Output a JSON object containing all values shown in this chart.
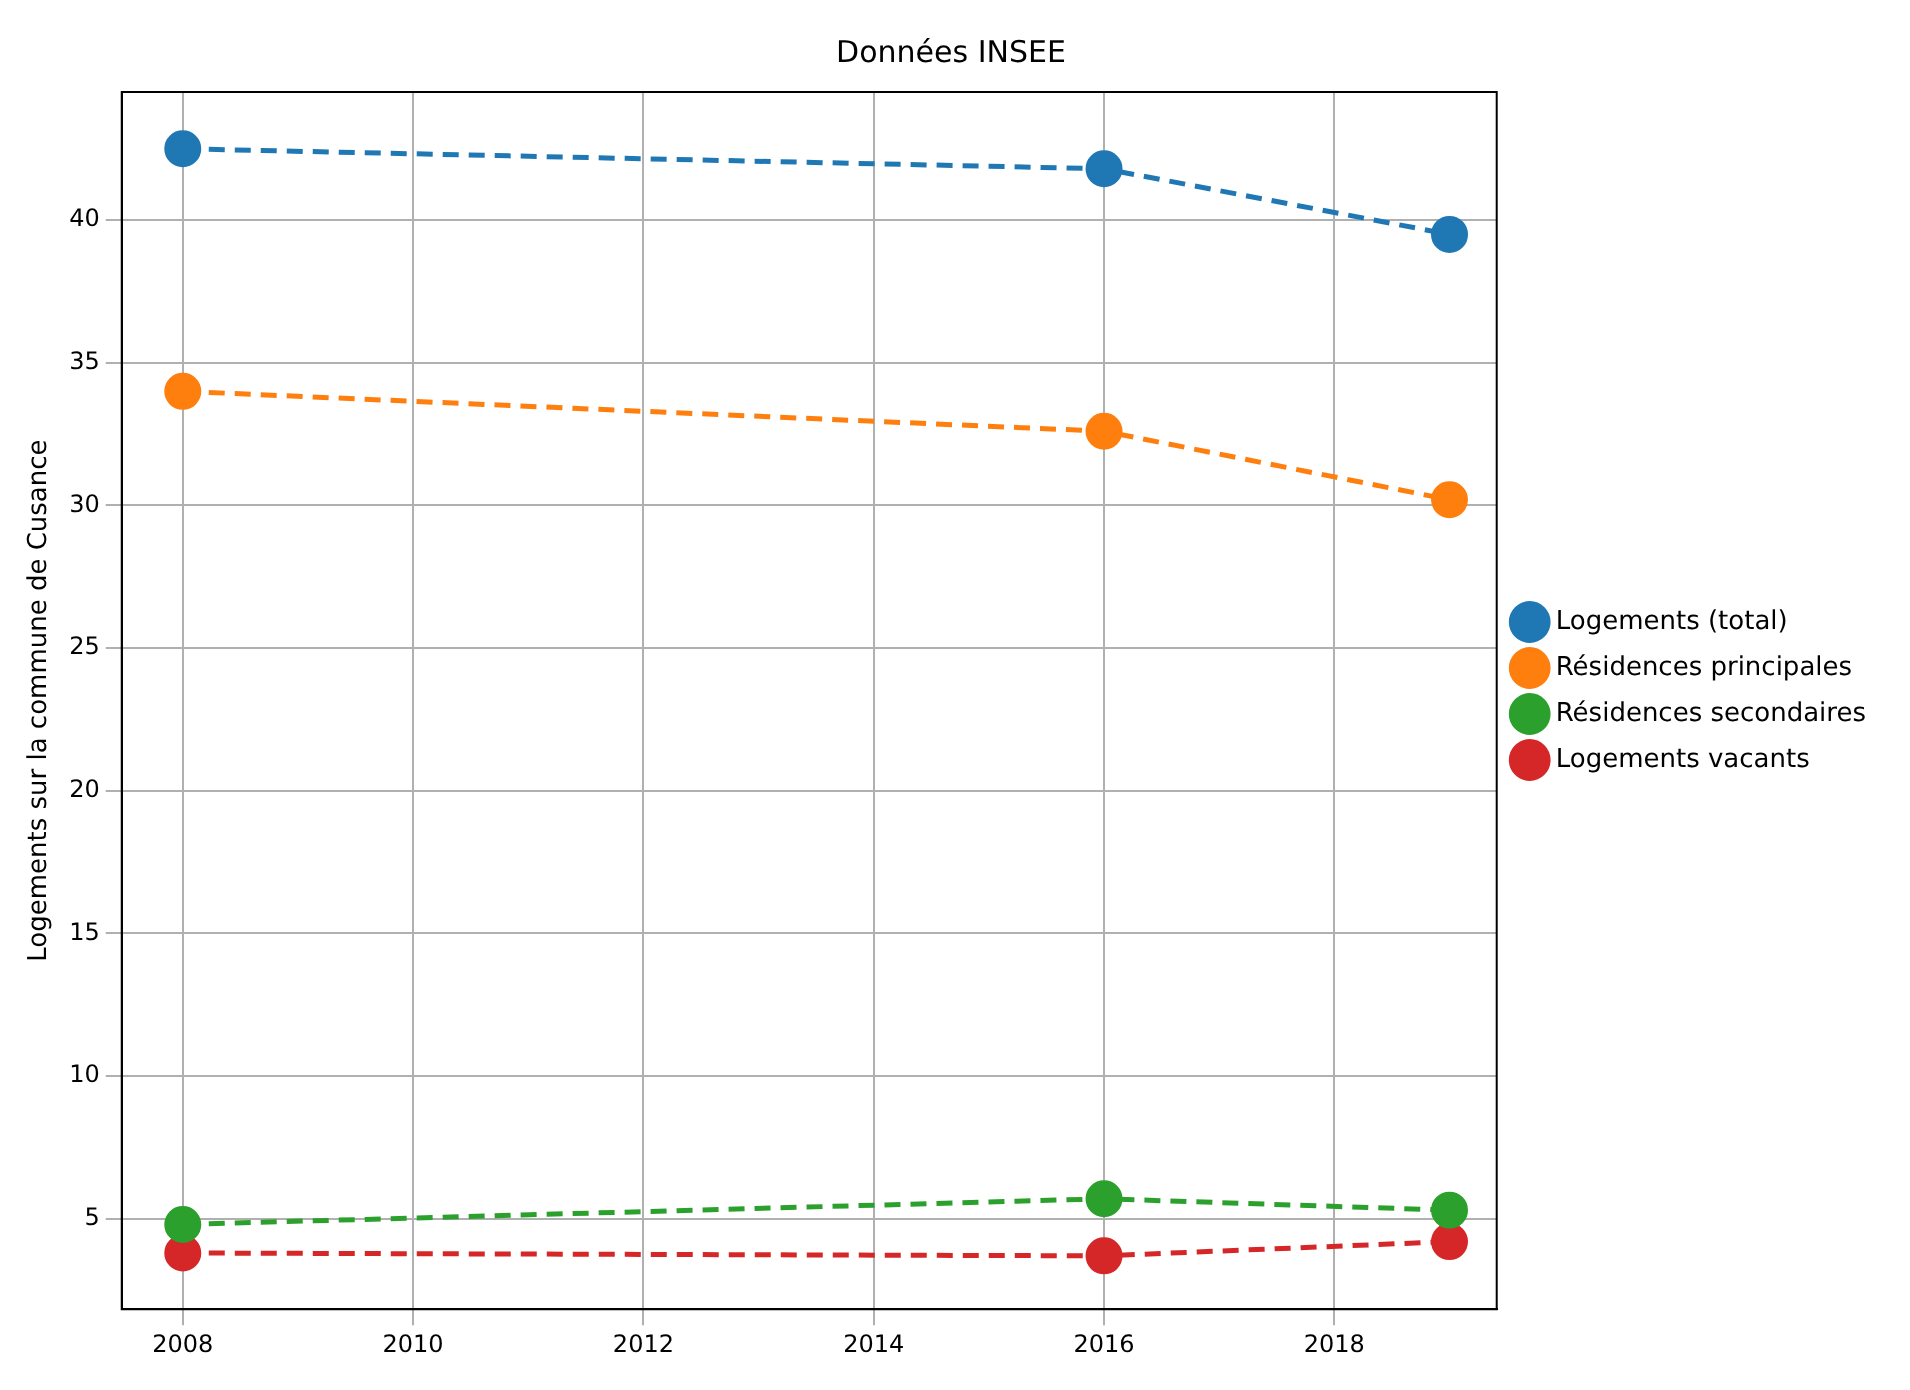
{
  "chart_data": {
    "type": "line",
    "title": "Données INSEE",
    "ylabel": "Logements sur la commune de Cusance",
    "x": [
      2008,
      2016,
      2019
    ],
    "series": [
      {
        "name": "Logements (total)",
        "color": "#1f77b4",
        "values": [
          42.5,
          41.8,
          39.5
        ]
      },
      {
        "name": "Résidences principales",
        "color": "#ff7f0e",
        "values": [
          34,
          32.6,
          30.2
        ]
      },
      {
        "name": "Résidences secondaires",
        "color": "#2ca02c",
        "values": [
          4.8,
          5.7,
          5.3
        ]
      },
      {
        "name": "Logements vacants",
        "color": "#d62728",
        "values": [
          3.8,
          3.7,
          4.2
        ]
      }
    ],
    "xlim": [
      2007.47,
      2019.41
    ],
    "xticks": [
      2008,
      2010,
      2012,
      2014,
      2016,
      2018
    ],
    "ylim": [
      1.83,
      44.49
    ],
    "yticks": [
      5,
      10,
      15,
      20,
      25,
      30,
      35,
      40
    ],
    "grid": true,
    "legend": "right",
    "marker": "circle",
    "line_style": "dashed"
  }
}
